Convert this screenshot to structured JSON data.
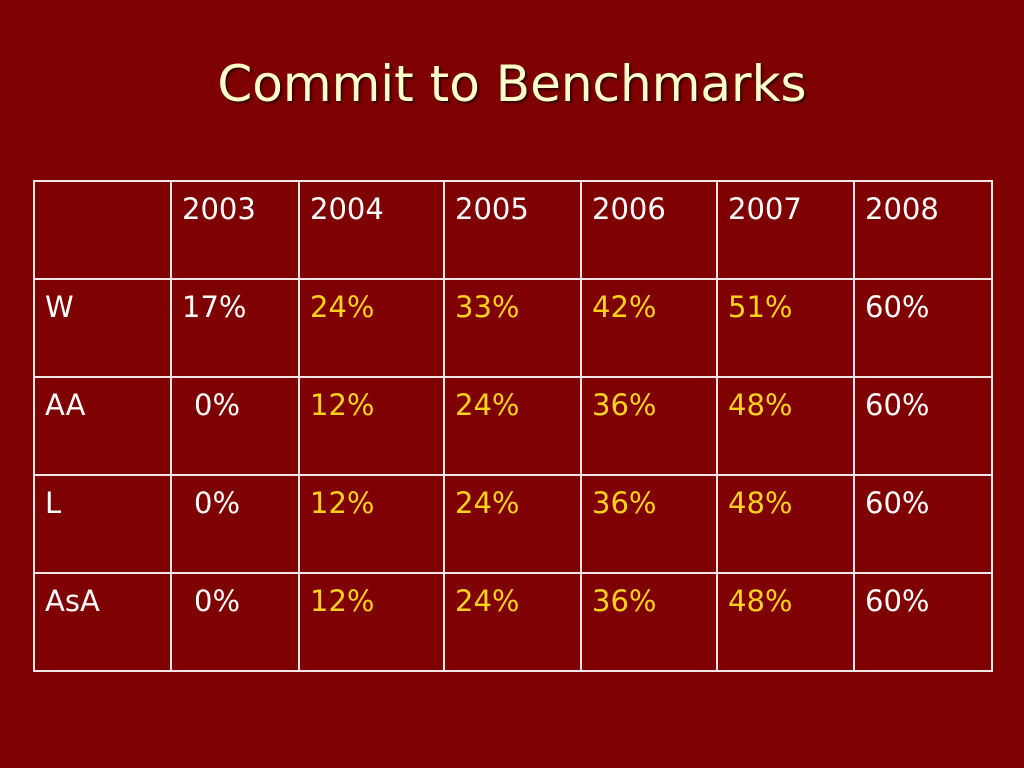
{
  "title": "Commit to Benchmarks",
  "table": {
    "columns": [
      "2003",
      "2004",
      "2005",
      "2006",
      "2007",
      "2008"
    ],
    "rows": [
      {
        "label": "W",
        "cells": [
          "17%",
          "24%",
          "33%",
          "42%",
          "51%",
          "60%"
        ]
      },
      {
        "label": "AA",
        "cells": [
          "0%",
          "12%",
          "24%",
          "36%",
          "48%",
          "60%"
        ]
      },
      {
        "label": "L",
        "cells": [
          "0%",
          "12%",
          "24%",
          "36%",
          "48%",
          "60%"
        ]
      },
      {
        "label": "AsA",
        "cells": [
          "0%",
          "12%",
          "24%",
          "36%",
          "48%",
          "60%"
        ]
      }
    ]
  }
}
